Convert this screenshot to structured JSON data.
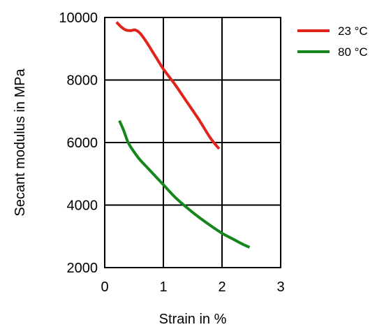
{
  "chart_data": {
    "type": "line",
    "title": "",
    "xlabel": "Strain in %",
    "ylabel": "Secant modulus in MPa",
    "xlim": [
      0,
      3
    ],
    "ylim": [
      2000,
      10000
    ],
    "xticks": [
      0,
      1,
      2,
      3
    ],
    "yticks": [
      2000,
      4000,
      6000,
      8000,
      10000
    ],
    "x_tick_labels": [
      "0",
      "1",
      "2",
      "3"
    ],
    "y_tick_labels": [
      "2000",
      "4000",
      "6000",
      "8000",
      "10000"
    ],
    "grid": true,
    "legend_position": "outside-top-right",
    "series": [
      {
        "name": "23 °C",
        "color": "#e0241b",
        "points": [
          [
            0.2,
            9850
          ],
          [
            0.28,
            9700
          ],
          [
            0.36,
            9600
          ],
          [
            0.44,
            9580
          ],
          [
            0.52,
            9600
          ],
          [
            0.6,
            9500
          ],
          [
            0.7,
            9250
          ],
          [
            0.8,
            8950
          ],
          [
            0.9,
            8650
          ],
          [
            1.0,
            8350
          ],
          [
            1.2,
            7850
          ],
          [
            1.4,
            7300
          ],
          [
            1.6,
            6750
          ],
          [
            1.8,
            6150
          ],
          [
            1.95,
            5800
          ]
        ]
      },
      {
        "name": "80 °C",
        "color": "#15861c",
        "points": [
          [
            0.25,
            6700
          ],
          [
            0.32,
            6400
          ],
          [
            0.4,
            6000
          ],
          [
            0.5,
            5700
          ],
          [
            0.6,
            5450
          ],
          [
            0.75,
            5150
          ],
          [
            1.0,
            4650
          ],
          [
            1.2,
            4250
          ],
          [
            1.4,
            3920
          ],
          [
            1.6,
            3620
          ],
          [
            1.8,
            3350
          ],
          [
            2.0,
            3100
          ],
          [
            2.2,
            2900
          ],
          [
            2.35,
            2750
          ],
          [
            2.47,
            2650
          ]
        ]
      }
    ]
  }
}
